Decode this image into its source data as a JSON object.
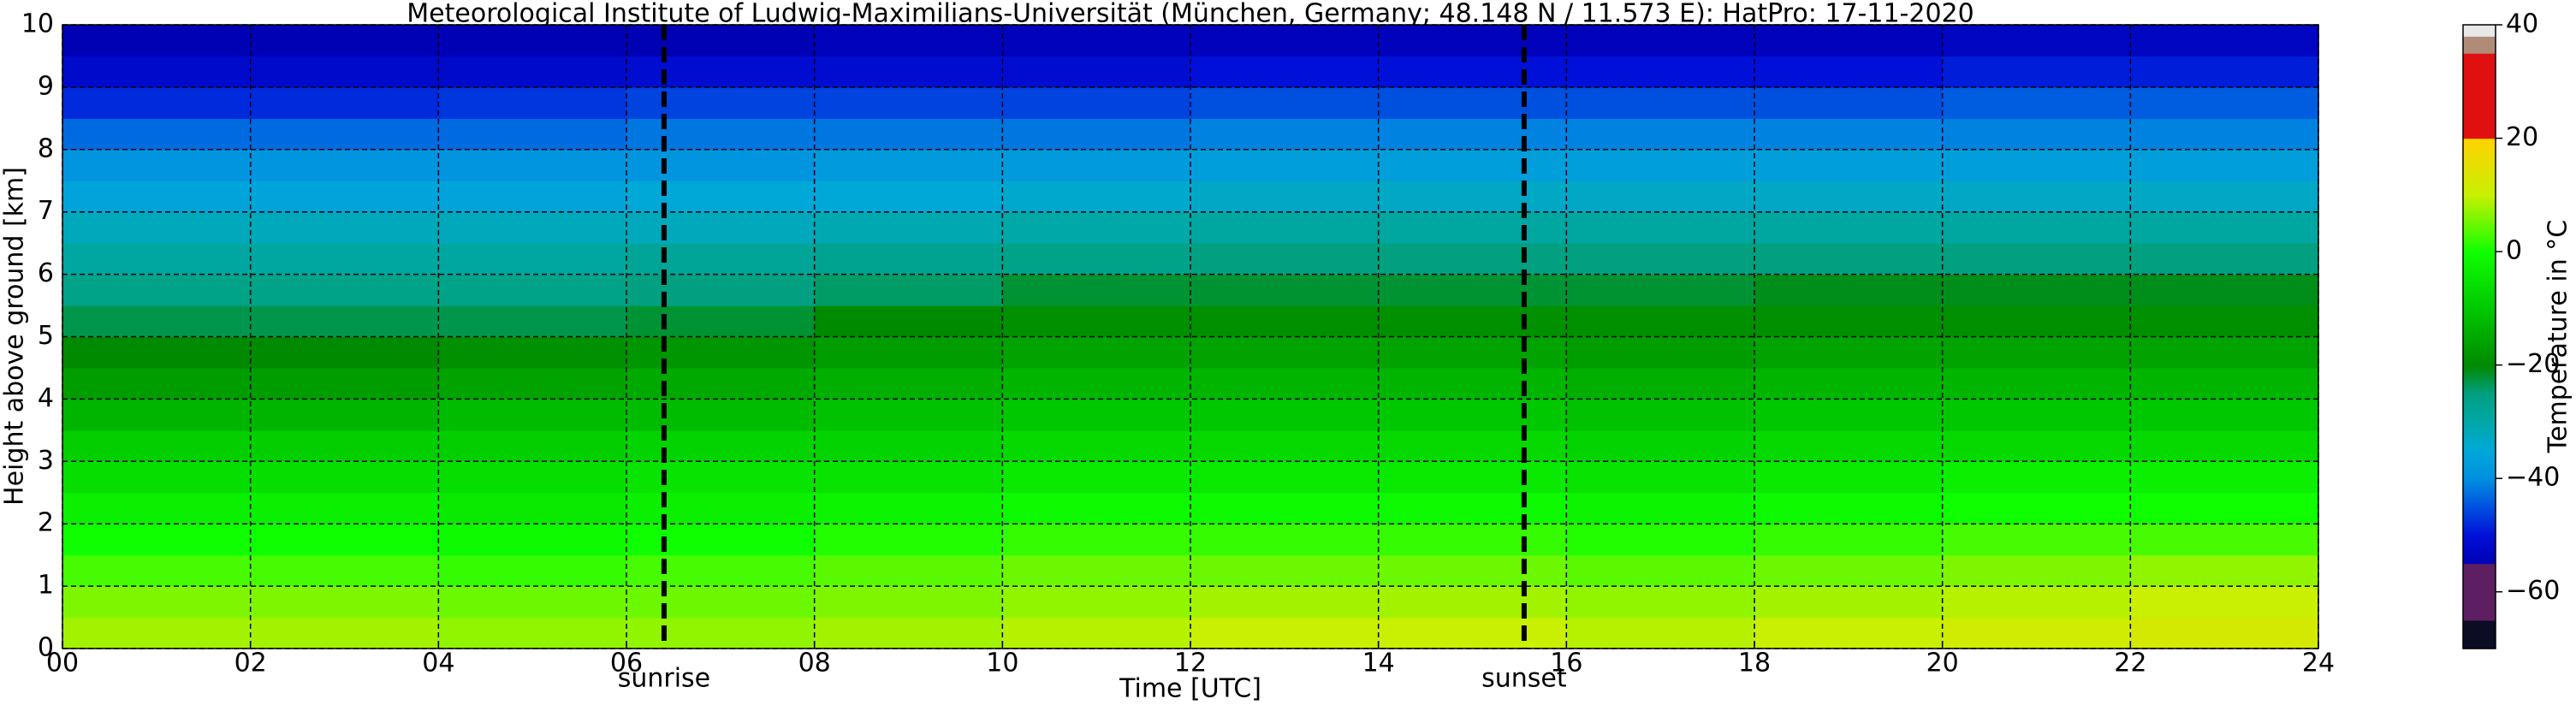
{
  "chart_data": {
    "type": "heatmap",
    "title": "Meteorological Institute of Ludwig-Maximilians-Universität (München, Germany; 48.148 N / 11.573 E):    HatPro: 17-11-2020",
    "xlabel": "Time [UTC]",
    "ylabel": "Height above ground [km]",
    "colorbar_label": "Temperature in °C",
    "x": [
      1,
      3,
      5,
      7,
      9,
      11,
      13,
      15,
      17,
      19,
      21,
      23
    ],
    "y": [
      0.25,
      0.75,
      1.25,
      1.75,
      2.25,
      2.75,
      3.25,
      3.75,
      4.25,
      4.75,
      5.25,
      5.75,
      6.25,
      6.75,
      7.25,
      7.75,
      8.25,
      8.75,
      9.25,
      9.75
    ],
    "z": [
      [
        8,
        8,
        7,
        7,
        8,
        9,
        10,
        10,
        9,
        10,
        11,
        12
      ],
      [
        6,
        6,
        5,
        5,
        6,
        7,
        8,
        8,
        7,
        8,
        9,
        10
      ],
      [
        3,
        3,
        2,
        3,
        4,
        5,
        5,
        5,
        4,
        5,
        6,
        7
      ],
      [
        0,
        0,
        -1,
        0,
        1,
        2,
        2,
        2,
        1,
        2,
        3,
        3
      ],
      [
        -3,
        -3,
        -4,
        -3,
        -2,
        -1,
        -1,
        -1,
        -2,
        -1,
        0,
        0
      ],
      [
        -6,
        -6,
        -6,
        -5,
        -5,
        -4,
        -4,
        -4,
        -5,
        -4,
        -3,
        -3
      ],
      [
        -9,
        -9,
        -9,
        -8,
        -8,
        -7,
        -7,
        -7,
        -8,
        -7,
        -7,
        -7
      ],
      [
        -13,
        -13,
        -12,
        -12,
        -11,
        -10,
        -10,
        -10,
        -11,
        -10,
        -10,
        -10
      ],
      [
        -17,
        -17,
        -16,
        -15,
        -14,
        -13,
        -13,
        -13,
        -14,
        -13,
        -13,
        -13
      ],
      [
        -20,
        -20,
        -19,
        -18,
        -17,
        -16,
        -16,
        -16,
        -17,
        -16,
        -16,
        -16
      ],
      [
        -23,
        -23,
        -23,
        -22,
        -20,
        -19,
        -19,
        -19,
        -19,
        -19,
        -19,
        -19
      ],
      [
        -26,
        -26,
        -26,
        -25,
        -24,
        -22,
        -22,
        -22,
        -22,
        -21,
        -21,
        -21
      ],
      [
        -29,
        -29,
        -29,
        -28,
        -27,
        -26,
        -25,
        -25,
        -25,
        -25,
        -25,
        -25
      ],
      [
        -32,
        -32,
        -32,
        -32,
        -31,
        -30,
        -29,
        -29,
        -29,
        -29,
        -29,
        -29
      ],
      [
        -36,
        -36,
        -36,
        -35,
        -35,
        -34,
        -33,
        -33,
        -33,
        -33,
        -33,
        -33
      ],
      [
        -39,
        -39,
        -39,
        -39,
        -38,
        -38,
        -37,
        -37,
        -37,
        -37,
        -37,
        -37
      ],
      [
        -43,
        -43,
        -43,
        -42,
        -42,
        -42,
        -41,
        -41,
        -41,
        -41,
        -41,
        -41
      ],
      [
        -48,
        -48,
        -47,
        -46,
        -46,
        -46,
        -45,
        -45,
        -45,
        -45,
        -44,
        -44
      ],
      [
        -52,
        -52,
        -52,
        -51,
        -51,
        -51,
        -50,
        -50,
        -50,
        -50,
        -49,
        -49
      ],
      [
        -55,
        -55,
        -55,
        -55,
        -54,
        -54,
        -54,
        -54,
        -54,
        -54,
        -53,
        -53
      ]
    ],
    "xlim": [
      0,
      24
    ],
    "xticks": [
      {
        "value": 0,
        "label": "00"
      },
      {
        "value": 2,
        "label": "02"
      },
      {
        "value": 4,
        "label": "04"
      },
      {
        "value": 6,
        "label": "06"
      },
      {
        "value": 8,
        "label": "08"
      },
      10,
      12,
      14,
      16,
      18,
      20,
      22,
      24
    ],
    "ylim": [
      0,
      10
    ],
    "yticks": [
      0,
      1,
      2,
      3,
      4,
      5,
      6,
      7,
      8,
      9,
      10
    ],
    "clim": [
      -70,
      40
    ],
    "cticks": [
      {
        "value": -60,
        "label": "−60"
      },
      {
        "value": -40,
        "label": "−40"
      },
      {
        "value": -20,
        "label": "−20"
      },
      0,
      20,
      40
    ],
    "colormap": [
      [
        -70,
        "#0c0c24"
      ],
      [
        -65,
        "#0c0c24"
      ],
      [
        -65,
        "#5e1f62"
      ],
      [
        -55,
        "#5e1f62"
      ],
      [
        -55,
        "#0000b4"
      ],
      [
        -50,
        "#0010d8"
      ],
      [
        -45,
        "#0050e0"
      ],
      [
        -40,
        "#0090e0"
      ],
      [
        -35,
        "#00a8d8"
      ],
      [
        -30,
        "#00a8a8"
      ],
      [
        -25,
        "#00a080"
      ],
      [
        -20,
        "#008a00"
      ],
      [
        -10,
        "#00c800"
      ],
      [
        0,
        "#10ff00"
      ],
      [
        10,
        "#c8f000"
      ],
      [
        20,
        "#ffd200"
      ],
      [
        20,
        "#e01010"
      ],
      [
        35,
        "#e01010"
      ],
      [
        35,
        "#b08c78"
      ],
      [
        38,
        "#b08c78"
      ],
      [
        38,
        "#e8e8e8"
      ],
      [
        40,
        "#e8e8e8"
      ]
    ],
    "grid": true,
    "annotations": [
      {
        "x": 6.4,
        "label": "sunrise"
      },
      {
        "x": 15.55,
        "label": "sunset"
      }
    ]
  }
}
